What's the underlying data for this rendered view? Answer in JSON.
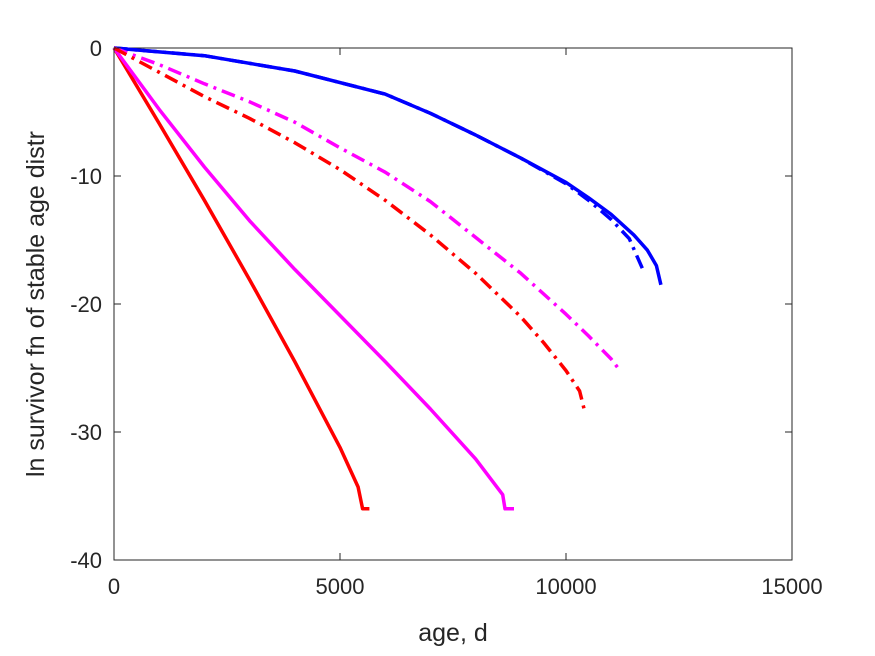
{
  "chart_data": {
    "type": "line",
    "title": "",
    "xlabel": "age, d",
    "ylabel": "ln survivor fn of stable age distr",
    "xlim": [
      0,
      15000
    ],
    "ylim": [
      -40,
      0
    ],
    "xticks": [
      0,
      5000,
      10000,
      15000
    ],
    "yticks": [
      0,
      -10,
      -20,
      -30,
      -40
    ],
    "xtick_labels": [
      "0",
      "5000",
      "10000",
      "15000"
    ],
    "ytick_labels": [
      "0",
      "-10",
      "-20",
      "-30",
      "-40"
    ],
    "grid": false,
    "legend": "none",
    "series": [
      {
        "color": "#ff0000",
        "style": "solid",
        "x": [
          0,
          1000,
          2000,
          3000,
          4000,
          5000,
          5400,
          5500,
          5650
        ],
        "y": [
          0,
          -5.9,
          -11.9,
          -18.1,
          -24.5,
          -31.2,
          -34.3,
          -36.0,
          -36.0
        ]
      },
      {
        "color": "#ff00ff",
        "style": "solid",
        "x": [
          0,
          1000,
          2000,
          3000,
          4000,
          5000,
          6000,
          7000,
          8000,
          8600,
          8650,
          8850
        ],
        "y": [
          0,
          -4.8,
          -9.3,
          -13.5,
          -17.3,
          -20.9,
          -24.5,
          -28.2,
          -32.1,
          -34.9,
          -36.0,
          -36.0
        ]
      },
      {
        "color": "#0000ff",
        "style": "solid",
        "x": [
          0,
          2000,
          4000,
          6000,
          7000,
          8000,
          9000,
          10000,
          10500,
          11000,
          11500,
          11800,
          12000,
          12100
        ],
        "y": [
          0,
          -0.6,
          -1.8,
          -3.6,
          -5.1,
          -6.8,
          -8.6,
          -10.5,
          -11.7,
          -13.0,
          -14.6,
          -15.8,
          -17.0,
          -18.5
        ]
      },
      {
        "color": "#0000ff",
        "style": "dashdot",
        "x": [
          0,
          2000,
          4000,
          6000,
          7000,
          8000,
          9000,
          10000,
          10500,
          11000,
          11400,
          11700
        ],
        "y": [
          0,
          -0.6,
          -1.8,
          -3.6,
          -5.1,
          -6.8,
          -8.6,
          -10.6,
          -11.9,
          -13.4,
          -14.9,
          -17.3
        ]
      },
      {
        "color": "#ff00ff",
        "style": "dashdot",
        "x": [
          0,
          1000,
          2000,
          3000,
          4000,
          5000,
          6000,
          7000,
          8000,
          9000,
          10000,
          10500,
          11000,
          11150
        ],
        "y": [
          0,
          -1.3,
          -2.8,
          -4.2,
          -5.8,
          -7.8,
          -9.7,
          -12.0,
          -14.8,
          -17.6,
          -20.8,
          -22.5,
          -24.3,
          -25.0
        ]
      },
      {
        "color": "#ff0000",
        "style": "dashdot",
        "x": [
          0,
          1000,
          2000,
          3000,
          4000,
          5000,
          6000,
          7000,
          8000,
          9000,
          9500,
          10000,
          10300,
          10400
        ],
        "y": [
          0,
          -1.9,
          -3.8,
          -5.5,
          -7.4,
          -9.5,
          -11.9,
          -14.6,
          -17.6,
          -21.0,
          -23.0,
          -25.2,
          -26.8,
          -28.2
        ]
      }
    ]
  }
}
